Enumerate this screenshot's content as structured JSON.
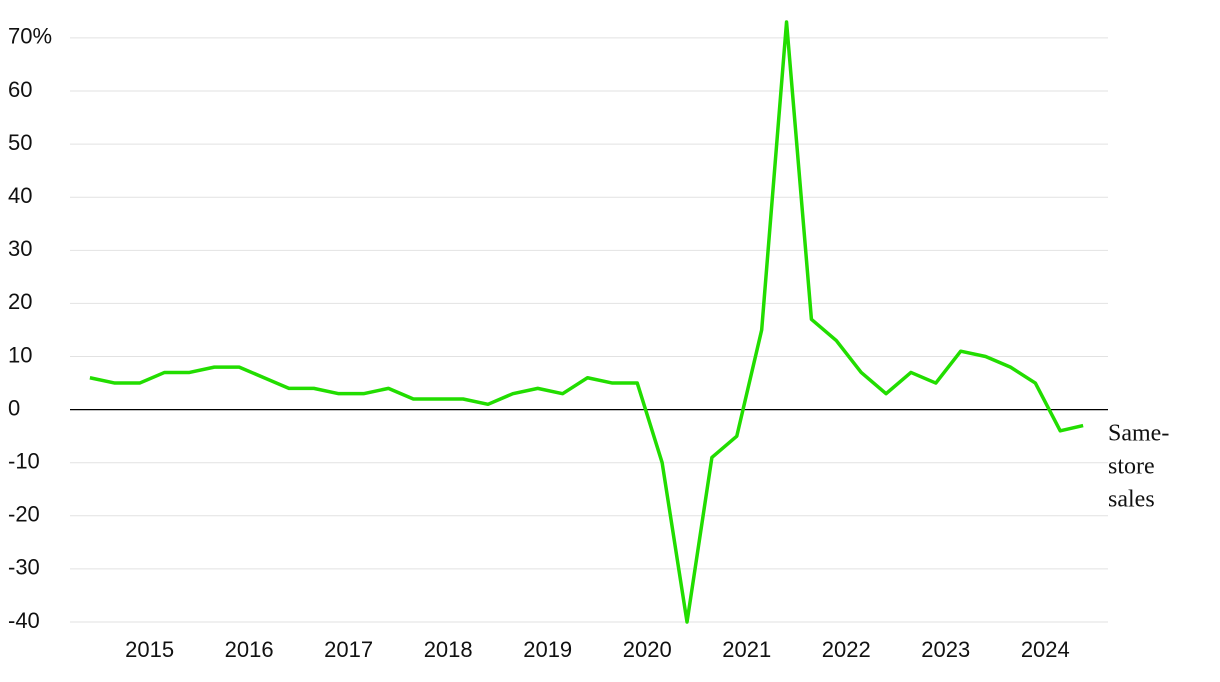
{
  "chart_data": {
    "type": "line",
    "x": [
      2014.4,
      2014.65,
      2014.9,
      2015.15,
      2015.4,
      2015.65,
      2015.9,
      2016.15,
      2016.4,
      2016.65,
      2016.9,
      2017.15,
      2017.4,
      2017.65,
      2017.9,
      2018.15,
      2018.4,
      2018.65,
      2018.9,
      2019.15,
      2019.4,
      2019.65,
      2019.9,
      2020.15,
      2020.4,
      2020.65,
      2020.9,
      2021.15,
      2021.4,
      2021.65,
      2021.9,
      2022.15,
      2022.4,
      2022.65,
      2022.9,
      2023.15,
      2023.4,
      2023.65,
      2023.9,
      2024.15,
      2024.38
    ],
    "series": [
      {
        "label": [
          "Same-",
          "store",
          "sales"
        ],
        "color": "#22dd00",
        "values": [
          6,
          5,
          5,
          7,
          7,
          8,
          8,
          6,
          4,
          4,
          3,
          3,
          4,
          2,
          2,
          2,
          1,
          3,
          4,
          3,
          6,
          5,
          5,
          -10,
          -40,
          -9,
          -5,
          15,
          73,
          17,
          13,
          7,
          3,
          7,
          5,
          11,
          10,
          8,
          5,
          -4,
          -3
        ]
      }
    ],
    "xlim": [
      2014.2,
      2024.63
    ],
    "xticks": [
      2015,
      2016,
      2017,
      2018,
      2019,
      2020,
      2021,
      2022,
      2023,
      2024
    ],
    "ylim": [
      -40,
      73
    ],
    "yticks": [
      -40,
      -30,
      -20,
      -10,
      0,
      10,
      20,
      30,
      40,
      50,
      60,
      {
        "value": 70,
        "label": "70%"
      }
    ],
    "grid": true,
    "zero_line_color": "#000000"
  }
}
